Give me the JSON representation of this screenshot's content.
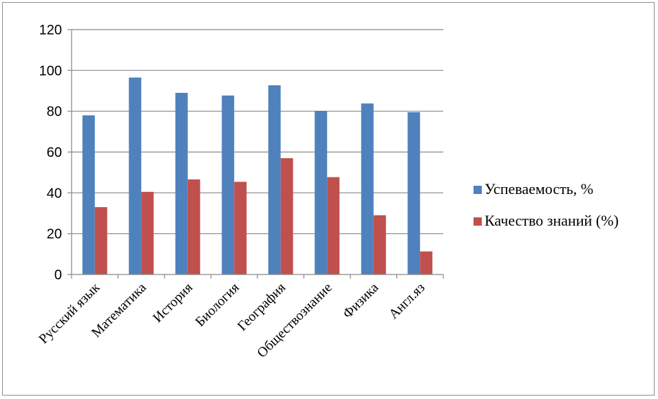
{
  "chart_data": {
    "type": "bar",
    "categories": [
      "Русский язык",
      "Математика",
      "История",
      "Биология",
      "География",
      "Обществознание",
      "Физика",
      "Англ.яз"
    ],
    "series": [
      {
        "name": "Успеваемость, %",
        "color": "#4f81bd",
        "values": [
          78,
          96.5,
          89,
          87.7,
          92.7,
          80.2,
          83.8,
          79.5
        ]
      },
      {
        "name": "Качество знаний (%)",
        "color": "#c0504d",
        "values": [
          33,
          40.5,
          46.6,
          45.4,
          57,
          47.7,
          29,
          11.3
        ]
      }
    ],
    "ylim": [
      0,
      120
    ],
    "yticks": [
      0,
      20,
      40,
      60,
      80,
      100,
      120
    ],
    "grid": true,
    "legend_position": "right",
    "xlabel": "",
    "ylabel": "",
    "title": ""
  }
}
